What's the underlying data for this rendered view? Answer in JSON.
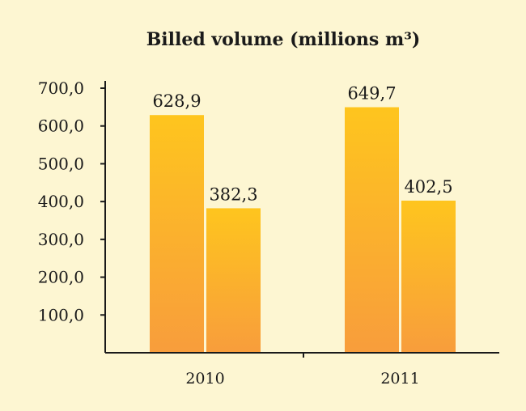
{
  "chart_data": {
    "type": "bar",
    "title": "Billed volume (millions m³)",
    "categories": [
      "2010",
      "2011"
    ],
    "series": [
      {
        "values": [
          628.9,
          649.7
        ]
      },
      {
        "values": [
          382.3,
          402.5
        ]
      }
    ],
    "data_labels": [
      [
        "628,9",
        "382,3"
      ],
      [
        "649,7",
        "402,5"
      ]
    ],
    "yticks": [
      100,
      200,
      300,
      400,
      500,
      600,
      700
    ],
    "ytick_labels": [
      "100,0",
      "200,0",
      "300,0",
      "400,0",
      "500,0",
      "600,0",
      "700,0"
    ],
    "ylim": [
      0,
      700
    ],
    "xlabel": "",
    "ylabel": "",
    "grid": false,
    "legend": "none",
    "colors": {
      "bar_top": "#fec51e",
      "bar_bottom": "#f89d3c",
      "background": "#fdf6d2",
      "text": "#1a1a1a"
    }
  }
}
